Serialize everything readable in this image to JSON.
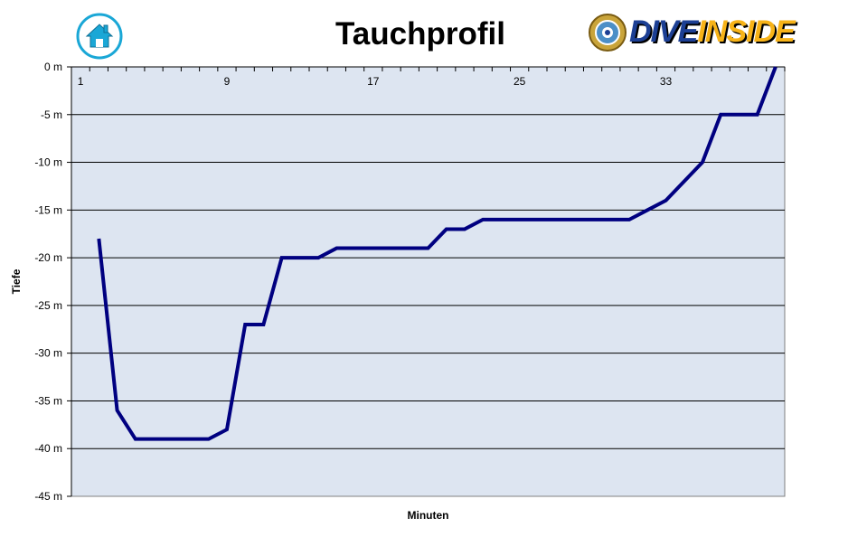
{
  "header": {
    "title": "Tauchprofil",
    "home_icon": "home-icon",
    "logo": {
      "text_dive": "DIVE",
      "text_inside": "INSIDE"
    }
  },
  "colors": {
    "plot_bg": "#dde5f1",
    "line": "#000080",
    "home_icon": "#1aa7d6",
    "grid": "#000000"
  },
  "chart_data": {
    "type": "line",
    "title": "Tauchprofil",
    "xlabel": "Minuten",
    "ylabel": "Tiefe",
    "x_tick_labels": [
      "1",
      "9",
      "17",
      "25",
      "33"
    ],
    "x_tick_values": [
      1,
      9,
      17,
      25,
      33
    ],
    "y_tick_labels": [
      "0 m",
      "-5 m",
      "-10 m",
      "-15 m",
      "-20 m",
      "-25 m",
      "-30 m",
      "-35 m",
      "-40 m",
      "-45 m"
    ],
    "ylim": [
      -45,
      0
    ],
    "xlim": [
      0.5,
      39.5
    ],
    "grid": true,
    "series": [
      {
        "x": [
          2,
          3,
          4,
          5,
          6,
          7,
          8,
          9,
          10,
          11,
          12,
          13,
          14,
          15,
          16,
          17,
          18,
          19,
          20,
          21,
          22,
          23,
          24,
          25,
          26,
          27,
          28,
          29,
          30,
          31,
          32,
          33,
          34,
          35,
          36,
          37,
          38,
          39
        ],
        "y": [
          -18,
          -36,
          -39,
          -39,
          -39,
          -39,
          -39,
          -38,
          -27,
          -27,
          -20,
          -20,
          -20,
          -19,
          -19,
          -19,
          -19,
          -19,
          -19,
          -17,
          -17,
          -16,
          -16,
          -16,
          -16,
          -16,
          -16,
          -16,
          -16,
          -16,
          -15,
          -14,
          -12,
          -10,
          -5,
          -5,
          -5,
          0
        ]
      }
    ]
  }
}
